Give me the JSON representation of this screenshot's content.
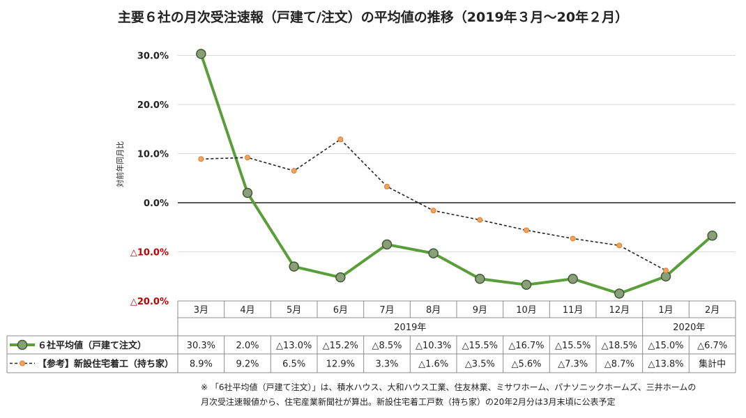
{
  "title": "主要６社の月次受注速報（戸建て/注文）の平均値の推移（2019年３月～20年２月）",
  "chart_data": {
    "type": "line",
    "title": "主要６社の月次受注速報（戸建て/注文）の平均値の推移（2019年３月～20年２月）",
    "ylabel": "対前年同月比",
    "ylim": [
      -20,
      35
    ],
    "y_ticks": [
      {
        "value": 30,
        "label": "30.0%",
        "color": "#222222"
      },
      {
        "value": 20,
        "label": "20.0%",
        "color": "#222222"
      },
      {
        "value": 10,
        "label": "10.0%",
        "color": "#222222"
      },
      {
        "value": 0,
        "label": "0.0%",
        "color": "#222222"
      },
      {
        "value": -10,
        "label": "△10.0%",
        "color": "#c00000"
      },
      {
        "value": -20,
        "label": "△20.0%",
        "color": "#c00000"
      }
    ],
    "categories": [
      "3月",
      "4月",
      "5月",
      "6月",
      "7月",
      "8月",
      "9月",
      "10月",
      "11月",
      "12月",
      "1月",
      "2月"
    ],
    "year_groups": [
      {
        "label": "2019年",
        "start": 0,
        "end": 9
      },
      {
        "label": "2020年",
        "start": 10,
        "end": 11
      }
    ],
    "grid": true,
    "series": [
      {
        "name": "６社平均値（戸建て注文）",
        "style": "solid",
        "color": "#5a9e3a",
        "marker_color": "#8a9e78",
        "values": [
          30.3,
          2.0,
          -13.0,
          -15.2,
          -8.5,
          -10.3,
          -15.5,
          -16.7,
          -15.5,
          -18.5,
          -15.0,
          -6.7
        ],
        "labels": [
          "30.3%",
          "2.0%",
          "△13.0%",
          "△15.2%",
          "△8.5%",
          "△10.3%",
          "△15.5%",
          "△16.7%",
          "△15.5%",
          "△18.5%",
          "△15.0%",
          "△6.7%"
        ]
      },
      {
        "name": "【参考】新設住宅着工（持ち家）",
        "style": "dashed",
        "color": "#222222",
        "marker_color": "#f2a35e",
        "values": [
          8.9,
          9.2,
          6.5,
          12.9,
          3.3,
          -1.6,
          -3.5,
          -5.6,
          -7.3,
          -8.7,
          -13.8,
          null
        ],
        "labels": [
          "8.9%",
          "9.2%",
          "6.5%",
          "12.9%",
          "3.3%",
          "△1.6%",
          "△3.5%",
          "△5.6%",
          "△7.3%",
          "△8.7%",
          "△13.8%",
          "集計中"
        ]
      }
    ]
  },
  "footnote": {
    "line1": "※ 「6社平均値（戸建て注文）」は、積水ハウス、大和ハウス工業、住友林業、ミサワホーム、パナソニックホームズ、三井ホームの",
    "line2": "月次受注速報値から、住宅産業新聞社が算出。新設住宅着工戸数（持ち家）の20年2月分は3月末頃に公表予定"
  }
}
